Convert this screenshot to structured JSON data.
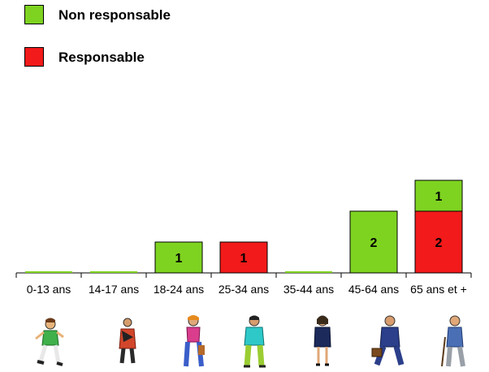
{
  "legend": {
    "items": [
      {
        "label": "Non responsable",
        "color": "#7ED321"
      },
      {
        "label": "Responsable",
        "color": "#F21A1A"
      }
    ]
  },
  "chart_data": {
    "type": "bar",
    "stacked": true,
    "categories": [
      "0-13 ans",
      "14-17 ans",
      "18-24 ans",
      "25-34 ans",
      "35-44 ans",
      "45-64 ans",
      "65 ans et +"
    ],
    "series": [
      {
        "name": "Responsable",
        "color": "#F21A1A",
        "values": [
          0,
          0,
          0,
          1,
          0,
          0,
          2
        ]
      },
      {
        "name": "Non responsable",
        "color": "#7ED321",
        "values": [
          0,
          0,
          1,
          0,
          0,
          2,
          1
        ]
      }
    ],
    "title": "",
    "xlabel": "",
    "ylabel": "",
    "ylim": [
      0,
      3
    ],
    "grid": false,
    "legend_position": "top-left"
  },
  "figures": [
    {
      "category": "0-13 ans",
      "icon": "child-running-icon"
    },
    {
      "category": "14-17 ans",
      "icon": "teen-walking-icon"
    },
    {
      "category": "18-24 ans",
      "icon": "young-woman-icon"
    },
    {
      "category": "25-34 ans",
      "icon": "young-man-icon"
    },
    {
      "category": "35-44 ans",
      "icon": "businesswoman-icon"
    },
    {
      "category": "45-64 ans",
      "icon": "businessman-briefcase-icon"
    },
    {
      "category": "65 ans et +",
      "icon": "elderly-man-cane-icon"
    }
  ]
}
